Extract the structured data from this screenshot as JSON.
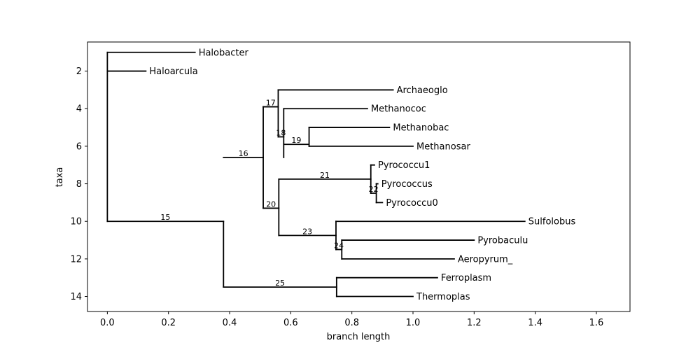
{
  "chart_data": {
    "type": "dendrogram",
    "xlabel": "branch length",
    "ylabel": "taxa",
    "xlim": [
      -0.065,
      1.71
    ],
    "ylim": [
      14.8,
      0.45
    ],
    "x_ticks": [
      0.0,
      0.2,
      0.4,
      0.6,
      0.8,
      1.0,
      1.2,
      1.4,
      1.6
    ],
    "x_tick_labels": [
      "0.0",
      "0.2",
      "0.4",
      "0.6",
      "0.8",
      "1.0",
      "1.2",
      "1.4",
      "1.6"
    ],
    "y_ticks": [
      2,
      4,
      6,
      8,
      10,
      12,
      14
    ],
    "y_tick_labels": [
      "2",
      "4",
      "6",
      "8",
      "10",
      "12",
      "14"
    ],
    "leaves": [
      {
        "name": "Halobacter",
        "x": 0.287,
        "y": 1
      },
      {
        "name": "Haloarcula",
        "x": 0.126,
        "y": 2
      },
      {
        "name": "Archaeoglo",
        "x": 0.935,
        "y": 3
      },
      {
        "name": "Methanococ",
        "x": 0.851,
        "y": 4
      },
      {
        "name": "Methanobac",
        "x": 0.923,
        "y": 5
      },
      {
        "name": "Methanosar",
        "x": 1.0,
        "y": 6
      },
      {
        "name": "Pyrococcu1",
        "x": 0.874,
        "y": 7
      },
      {
        "name": "Pyrococcus",
        "x": 0.885,
        "y": 8
      },
      {
        "name": "Pyrococcu0",
        "x": 0.9,
        "y": 9
      },
      {
        "name": "Sulfolobus",
        "x": 1.366,
        "y": 10
      },
      {
        "name": "Pyrobaculu",
        "x": 1.2,
        "y": 11
      },
      {
        "name": "Aeropyrum_",
        "x": 1.135,
        "y": 12
      },
      {
        "name": "Ferroplasm",
        "x": 1.08,
        "y": 13
      },
      {
        "name": "Thermoplas",
        "x": 1.0,
        "y": 14
      }
    ],
    "internal_nodes": [
      {
        "label": "15",
        "x": 0.38,
        "y": 10,
        "parent_x": 0.0,
        "children_y": [
          10,
          13.5
        ]
      },
      {
        "label": "16",
        "x": 0.51,
        "y": 6.6,
        "parent_x": 0.38,
        "children_y": [
          3.9,
          9.3
        ]
      },
      {
        "label": "17",
        "x": 0.559,
        "y": 3.9,
        "parent_x": 0.51,
        "children_y": [
          3,
          5.5
        ]
      },
      {
        "label": "18",
        "x": 0.577,
        "y": 5.5,
        "parent_x": 0.559,
        "children_y": [
          4,
          6.6
        ]
      },
      {
        "label": "19",
        "x": 0.66,
        "y": 5.9,
        "parent_x": 0.577,
        "children_y": [
          5,
          6
        ]
      },
      {
        "label": "20",
        "x": 0.561,
        "y": 9.3,
        "parent_x": 0.51,
        "children_y": [
          7.75,
          10.75
        ]
      },
      {
        "label": "21",
        "x": 0.862,
        "y": 7.75,
        "parent_x": 0.561,
        "children_y": [
          7,
          8.5
        ]
      },
      {
        "label": "22",
        "x": 0.88,
        "y": 8.5,
        "parent_x": 0.862,
        "children_y": [
          8,
          9
        ]
      },
      {
        "label": "23",
        "x": 0.748,
        "y": 10.75,
        "parent_x": 0.561,
        "children_y": [
          10,
          11.5
        ]
      },
      {
        "label": "24",
        "x": 0.767,
        "y": 11.5,
        "parent_x": 0.748,
        "children_y": [
          11,
          12
        ]
      },
      {
        "label": "25",
        "x": 0.75,
        "y": 13.5,
        "parent_x": 0.38,
        "children_y": [
          13,
          14
        ]
      }
    ],
    "root": {
      "x": 0.0,
      "children_y": [
        1,
        2,
        10
      ]
    },
    "grid": false
  }
}
